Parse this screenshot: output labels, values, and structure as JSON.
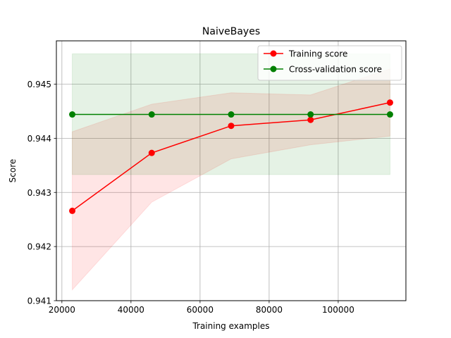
{
  "chart_data": {
    "type": "line",
    "title": "NaiveBayes",
    "xlabel": "Training examples",
    "ylabel": "Score",
    "xlim": [
      18400,
      119600
    ],
    "ylim": [
      0.941,
      0.9458
    ],
    "x_ticks": [
      20000,
      40000,
      60000,
      80000,
      100000
    ],
    "x_tick_labels": [
      "20000",
      "40000",
      "60000",
      "80000",
      "100000"
    ],
    "y_ticks": [
      0.941,
      0.942,
      0.943,
      0.944,
      0.945
    ],
    "y_tick_labels": [
      "0.941",
      "0.942",
      "0.943",
      "0.944",
      "0.945"
    ],
    "grid": true,
    "legend_position": "top-right",
    "x": [
      23000,
      46000,
      69000,
      92000,
      115000
    ],
    "series": [
      {
        "name": "Training score",
        "color": "#ff0000",
        "values": [
          0.94266,
          0.94373,
          0.94423,
          0.94434,
          0.94466
        ],
        "band_lower": [
          0.9412,
          0.94282,
          0.94362,
          0.94388,
          0.94404
        ],
        "band_upper": [
          0.94412,
          0.94463,
          0.94484,
          0.9448,
          0.94528
        ],
        "band_color": "#ff0000"
      },
      {
        "name": "Cross-validation score",
        "color": "#008000",
        "values": [
          0.94444,
          0.94444,
          0.94444,
          0.94444,
          0.94444
        ],
        "band_lower": [
          0.94333,
          0.94333,
          0.94333,
          0.94333,
          0.94333
        ],
        "band_upper": [
          0.94556,
          0.94556,
          0.94556,
          0.94556,
          0.94556
        ],
        "band_color": "#008000"
      }
    ]
  }
}
